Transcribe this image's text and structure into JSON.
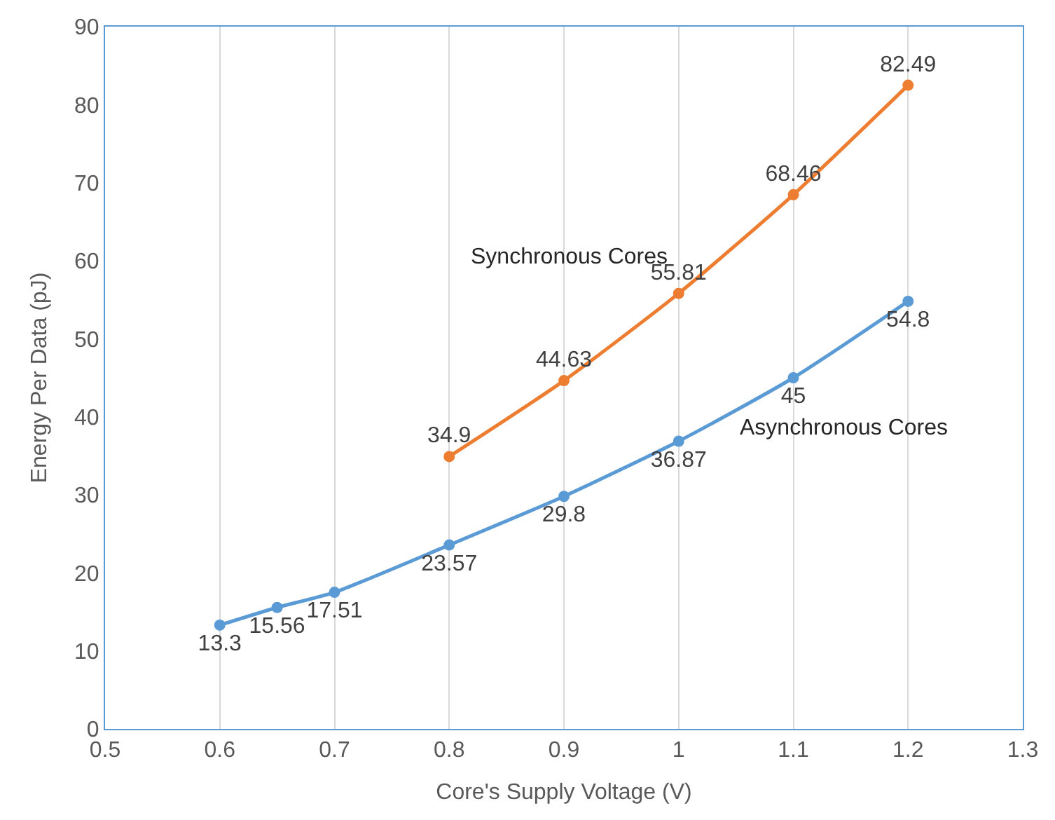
{
  "chart_data": {
    "type": "line",
    "xlabel": "Core's Supply Voltage (V)",
    "ylabel": "Energy Per Data (pJ)",
    "xlim": [
      0.5,
      1.3
    ],
    "xticks": [
      0.5,
      0.6,
      0.7,
      0.8,
      0.9,
      1,
      1.1,
      1.2,
      1.3
    ],
    "ylim": [
      0,
      90
    ],
    "yticks": [
      0,
      10,
      20,
      30,
      40,
      50,
      60,
      70,
      80,
      90
    ],
    "grid": "x",
    "legend": false,
    "marker": "circle",
    "line_style": "solid",
    "data_labels": true,
    "series": [
      {
        "name": "Asynchronous Cores",
        "color": "#5b9bd5",
        "x": [
          0.6,
          0.65,
          0.7,
          0.8,
          0.9,
          1,
          1.1,
          1.2
        ],
        "values": [
          13.3,
          15.56,
          17.51,
          23.57,
          29.8,
          36.87,
          45,
          54.8
        ]
      },
      {
        "name": "Synchronous Cores",
        "color": "#ed7d31",
        "x": [
          0.8,
          0.9,
          1,
          1.1,
          1.2
        ],
        "values": [
          34.9,
          44.63,
          55.81,
          68.46,
          82.49
        ]
      }
    ]
  }
}
